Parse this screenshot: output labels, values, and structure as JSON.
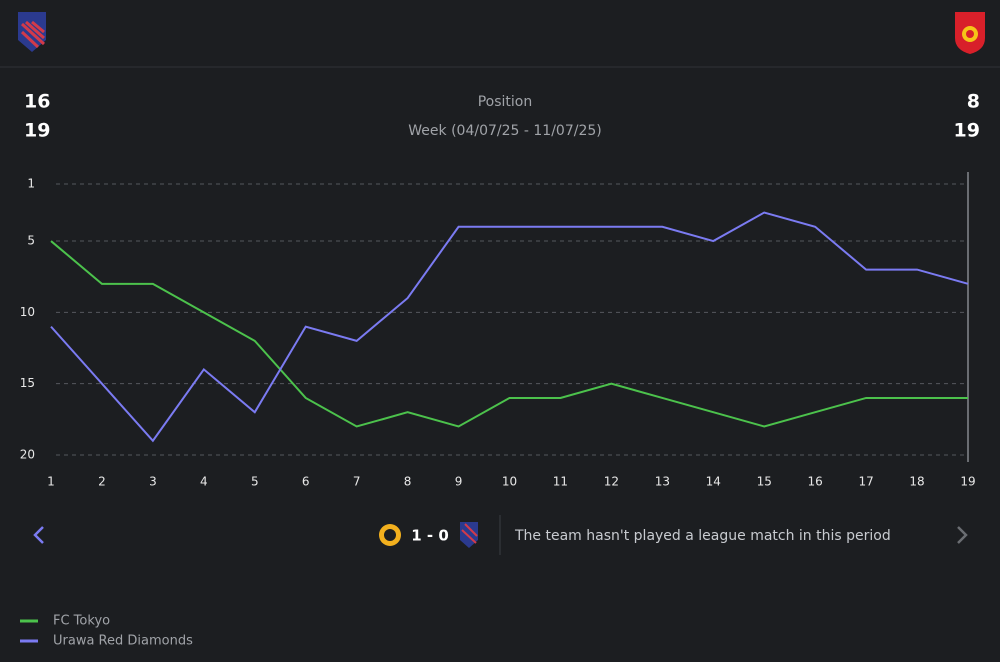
{
  "header": {
    "left_values": [
      "16",
      "19"
    ],
    "title": "Position",
    "subtitle": "Week (04/07/25 - 11/07/25)",
    "right_values": [
      "8",
      "19"
    ]
  },
  "chart_data": {
    "type": "line",
    "x": [
      1,
      2,
      3,
      4,
      5,
      6,
      7,
      8,
      9,
      10,
      11,
      12,
      13,
      14,
      15,
      16,
      17,
      18,
      19
    ],
    "xlim": [
      1,
      19
    ],
    "xticks": [
      1,
      2,
      3,
      4,
      5,
      6,
      7,
      8,
      9,
      10,
      11,
      12,
      13,
      14,
      15,
      16,
      17,
      18,
      19
    ],
    "ylim": [
      1,
      20
    ],
    "y_inverted": true,
    "yticks": [
      1,
      5,
      10,
      15,
      20
    ],
    "grid": true,
    "series": [
      {
        "name": "FC Tokyo",
        "color": "#4cc24c",
        "values": [
          5,
          8,
          8,
          10,
          12,
          16,
          18,
          17,
          18,
          16,
          16,
          15,
          16,
          17,
          18,
          17,
          16,
          16,
          16
        ]
      },
      {
        "name": "Urawa Red Diamonds",
        "color": "#7b7bf2",
        "values": [
          11,
          15,
          19,
          14,
          17,
          11,
          12,
          9,
          4,
          4,
          4,
          4,
          4,
          5,
          3,
          4,
          7,
          7,
          8
        ]
      }
    ]
  },
  "match": {
    "score": "1 - 0",
    "message": "The team hasn't played a league match in this period"
  }
}
